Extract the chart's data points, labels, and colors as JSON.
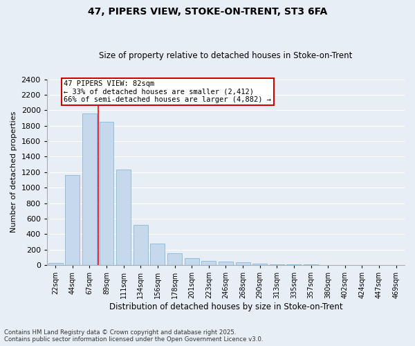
{
  "title1": "47, PIPERS VIEW, STOKE-ON-TRENT, ST3 6FA",
  "title2": "Size of property relative to detached houses in Stoke-on-Trent",
  "xlabel": "Distribution of detached houses by size in Stoke-on-Trent",
  "ylabel": "Number of detached properties",
  "categories": [
    "22sqm",
    "44sqm",
    "67sqm",
    "89sqm",
    "111sqm",
    "134sqm",
    "156sqm",
    "178sqm",
    "201sqm",
    "223sqm",
    "246sqm",
    "268sqm",
    "290sqm",
    "313sqm",
    "335sqm",
    "357sqm",
    "380sqm",
    "402sqm",
    "424sqm",
    "447sqm",
    "469sqm"
  ],
  "values": [
    25,
    1160,
    1960,
    1850,
    1230,
    520,
    280,
    155,
    90,
    55,
    45,
    40,
    15,
    10,
    5,
    5,
    3,
    3,
    2,
    2,
    1
  ],
  "bar_color": "#c5d8ec",
  "bar_edge_color": "#7aafd4",
  "vline_color": "red",
  "vline_x": 2.5,
  "annotation_text": "47 PIPERS VIEW: 82sqm\n← 33% of detached houses are smaller (2,412)\n66% of semi-detached houses are larger (4,882) →",
  "annotation_box_facecolor": "white",
  "annotation_box_edgecolor": "#cc0000",
  "background_color": "#e8eef5",
  "grid_color": "white",
  "footer1": "Contains HM Land Registry data © Crown copyright and database right 2025.",
  "footer2": "Contains public sector information licensed under the Open Government Licence v3.0.",
  "ylim": [
    0,
    2400
  ],
  "yticks": [
    0,
    200,
    400,
    600,
    800,
    1000,
    1200,
    1400,
    1600,
    1800,
    2000,
    2200,
    2400
  ]
}
